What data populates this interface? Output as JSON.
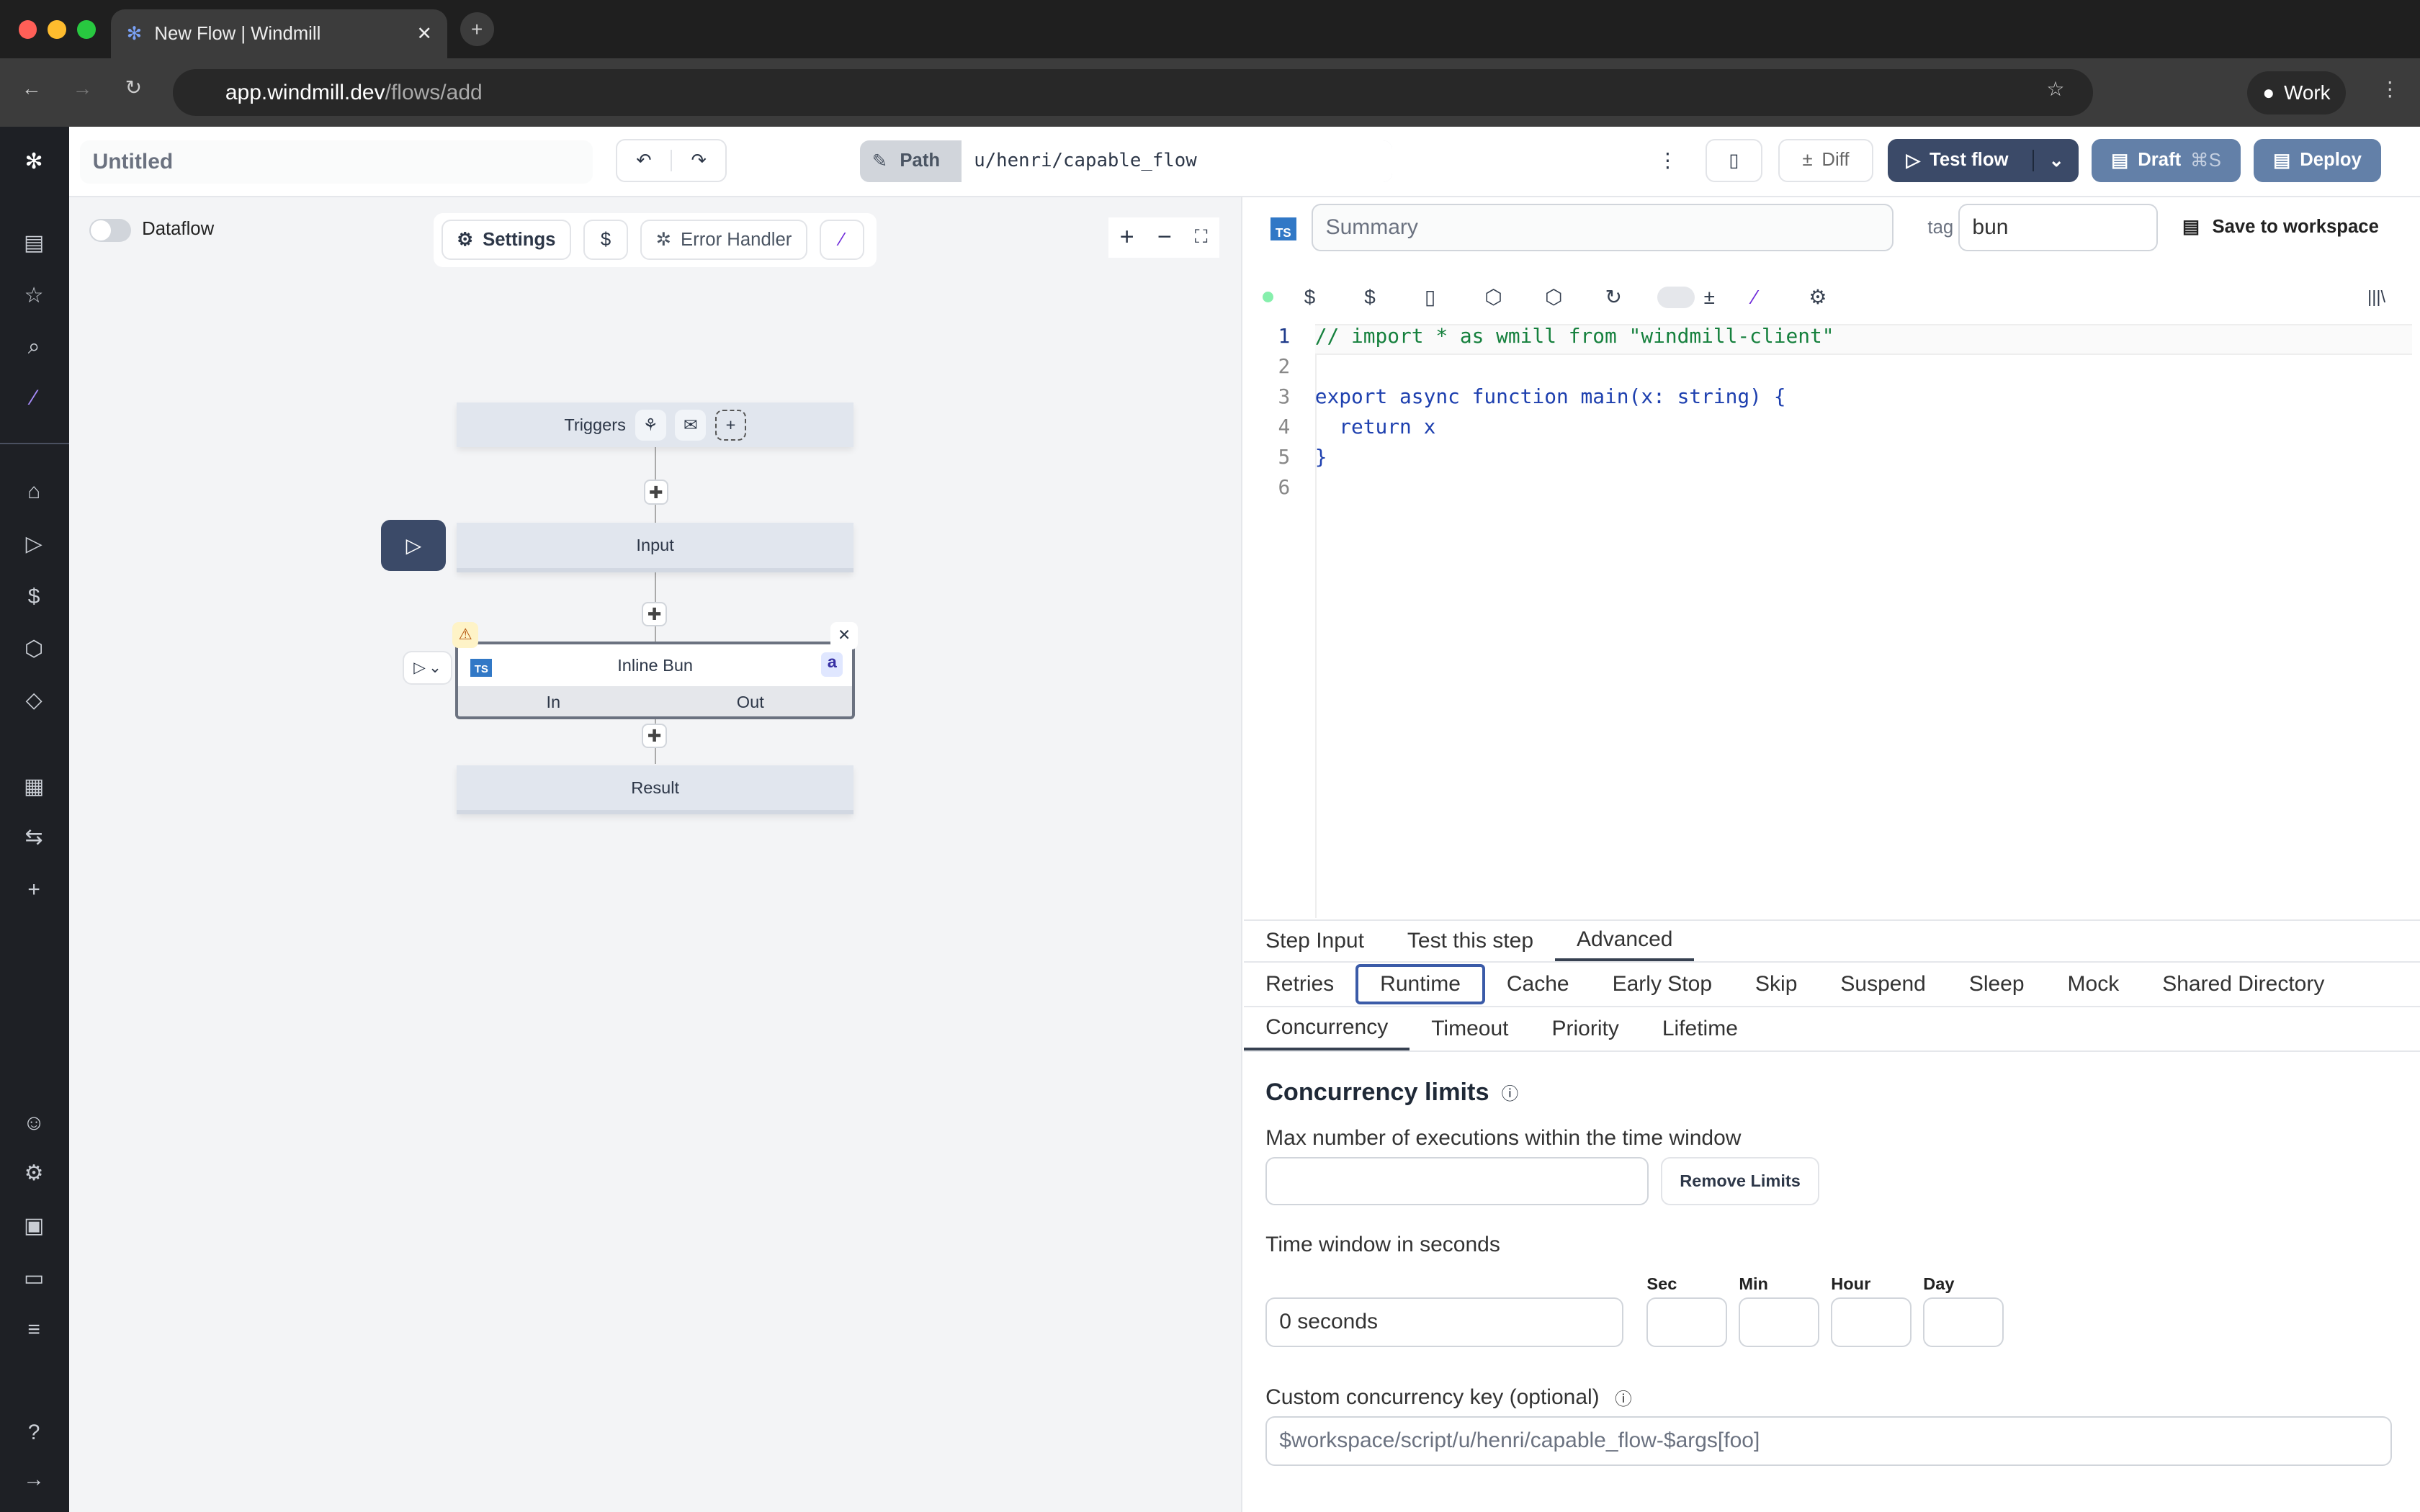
{
  "browser": {
    "tab_title": "New Flow | Windmill",
    "url_host": "app.windmill.dev",
    "url_path": "/flows/add",
    "profile": "Work"
  },
  "header": {
    "title_placeholder": "Untitled",
    "path_label": "Path",
    "path_value": "u/henri/capable_flow",
    "diff": "Diff",
    "test_flow": "Test flow",
    "draft": "Draft",
    "draft_shortcut": "⌘S",
    "deploy": "Deploy"
  },
  "canvas": {
    "dataflow": "Dataflow",
    "settings": "Settings",
    "error_handler": "Error Handler",
    "triggers": "Triggers",
    "input": "Input",
    "step_name": "Inline Bun",
    "step_id": "a",
    "in": "In",
    "out": "Out",
    "result": "Result"
  },
  "editor": {
    "summary_placeholder": "Summary",
    "tag_label": "tag",
    "tag_value": "bun",
    "save_to_workspace": "Save to workspace",
    "lang": "TS",
    "lines": [
      [
        "1",
        "// import * as wmill from \"windmill-client\""
      ],
      [
        "2",
        ""
      ],
      [
        "3",
        "export async function main(x: string) {"
      ],
      [
        "4",
        "  return x"
      ],
      [
        "5",
        "}"
      ],
      [
        "6",
        ""
      ]
    ]
  },
  "tabs1": [
    "Step Input",
    "Test this step",
    "Advanced"
  ],
  "tabs2": [
    "Retries",
    "Runtime",
    "Cache",
    "Early Stop",
    "Skip",
    "Suspend",
    "Sleep",
    "Mock",
    "Shared Directory"
  ],
  "tabs3": [
    "Concurrency",
    "Timeout",
    "Priority",
    "Lifetime"
  ],
  "concurrency": {
    "title": "Concurrency limits",
    "max_label": "Max number of executions within the time window",
    "remove": "Remove Limits",
    "window_label": "Time window in seconds",
    "window_value": "0 seconds",
    "units": [
      "Sec",
      "Min",
      "Hour",
      "Day"
    ],
    "key_label": "Custom concurrency key (optional)",
    "key_placeholder": "$workspace/script/u/henri/capable_flow-$args[foo]"
  },
  "colors": {
    "primary": "#3b4a68",
    "draft": "#6380a8",
    "canvas_bg": "#f3f4f6",
    "sidebar": "#1e2025"
  }
}
